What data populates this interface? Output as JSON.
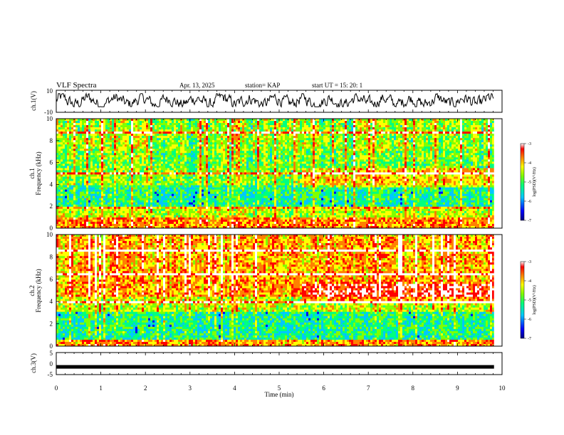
{
  "header": {
    "title": "VLF Spectra",
    "date": "Apr. 13, 2025",
    "station": "station= KAP",
    "start": "start  UT  =   15: 20: 1"
  },
  "chart_data": [
    {
      "type": "line",
      "id": "ch1-waveform",
      "ylabel": "ch.1(V)",
      "ylim": [
        -10,
        10
      ],
      "yticks": [
        "10",
        "-10"
      ],
      "xlim": [
        0,
        10
      ],
      "x_extent": [
        0,
        9.82
      ],
      "note_range": [
        -5,
        7
      ]
    },
    {
      "type": "heatmap",
      "id": "ch1-spectrogram",
      "ylabel_1": "ch.1",
      "ylabel_2": "Frequency (kHz)",
      "ylim": [
        0,
        10
      ],
      "yticks": [
        "0",
        "2",
        "4",
        "6",
        "8",
        "10"
      ],
      "xlim": [
        0,
        10
      ],
      "x_extent": [
        0,
        9.82
      ],
      "colorbar": {
        "label": "log(PSD)(V²/Hz)",
        "range": [
          -7,
          -3
        ],
        "ticks": [
          "-3",
          "-4",
          "-5",
          "-6",
          "-7"
        ]
      },
      "colormap": [
        "#000080",
        "#0000ff",
        "#00c8ff",
        "#00ff80",
        "#80ff00",
        "#ffff00",
        "#ff8000",
        "#ff0000",
        "#ffffff"
      ]
    },
    {
      "type": "heatmap",
      "id": "ch2-spectrogram",
      "ylabel_1": "ch.2",
      "ylabel_2": "Frequency (kHz)",
      "ylim": [
        0,
        10
      ],
      "yticks": [
        "0",
        "2",
        "4",
        "6",
        "8",
        "10"
      ],
      "xlim": [
        0,
        10
      ],
      "x_extent": [
        0,
        9.82
      ],
      "colorbar": {
        "label": "log(PSD)(V²/Hz)",
        "range": [
          -7,
          -3
        ],
        "ticks": [
          "-3",
          "-4",
          "-5",
          "-6",
          "-7"
        ]
      },
      "colormap": [
        "#000080",
        "#0000ff",
        "#00c8ff",
        "#00ff80",
        "#80ff00",
        "#ffff00",
        "#ff8000",
        "#ff0000",
        "#ffffff"
      ]
    },
    {
      "type": "line",
      "id": "ch3-waveform",
      "ylabel": "ch.3(V)",
      "ylim": [
        -5,
        5
      ],
      "yticks": [
        "5",
        "0",
        "-5"
      ],
      "xlim": [
        0,
        10
      ],
      "x_extent": [
        0,
        9.82
      ],
      "level": -1.5
    }
  ],
  "xaxis": {
    "label": "Time (min)",
    "ticks": [
      "0",
      "1",
      "2",
      "3",
      "4",
      "5",
      "6",
      "7",
      "8",
      "9",
      "10"
    ]
  }
}
